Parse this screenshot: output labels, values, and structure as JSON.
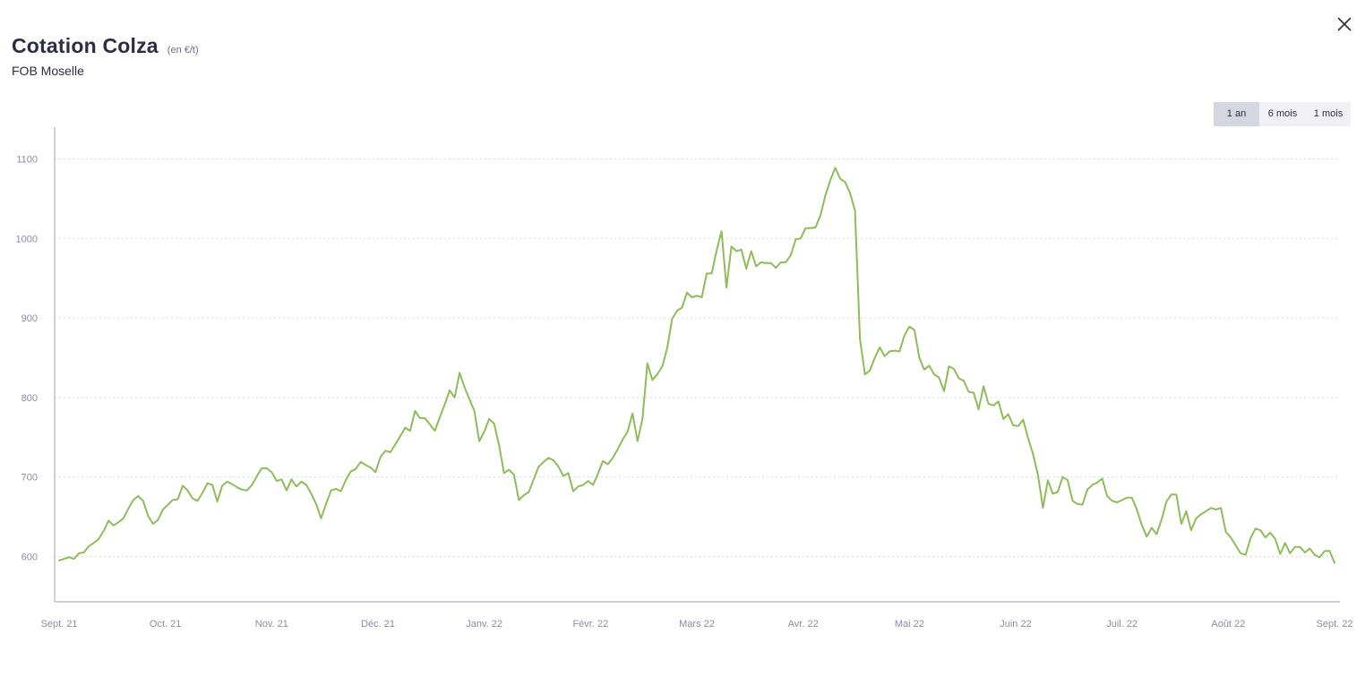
{
  "header": {
    "title": "Cotation Colza",
    "unit": "(en €/t)",
    "subtitle": "FOB Moselle"
  },
  "icons": {
    "close": "close-icon"
  },
  "range_buttons": [
    {
      "label": "1 an",
      "selected": true
    },
    {
      "label": "6 mois",
      "selected": false
    },
    {
      "label": "1 mois",
      "selected": false
    }
  ],
  "colors": {
    "line": "#8fbc5a",
    "grid": "#d5d7e0",
    "axis": "#9ea0b5",
    "selected_button": "#d6d6e0",
    "button_bg": "#f1f1f5"
  },
  "chart_data": {
    "type": "line",
    "title": "Cotation Colza",
    "subtitle": "FOB Moselle",
    "unit": "(en €/t)",
    "x_labels": [
      "Sept. 21",
      "Oct. 21",
      "Nov. 21",
      "Déc. 21",
      "Janv. 22",
      "Févr. 22",
      "Mars 22",
      "Avr. 22",
      "Mai 22",
      "Juin 22",
      "Juil. 22",
      "Août 22",
      "Sept. 22"
    ],
    "yticks": [
      600,
      700,
      800,
      900,
      1000,
      1100
    ],
    "ylim": [
      543,
      1140
    ],
    "grid": true,
    "legend": "none",
    "series": [
      {
        "values": [
          595,
          597,
          599,
          597,
          604,
          605,
          613,
          617,
          622,
          632,
          645,
          639,
          643,
          648,
          660,
          671,
          676,
          670,
          651,
          641,
          646,
          659,
          665,
          671,
          672,
          689,
          683,
          673,
          670,
          680,
          692,
          690,
          669,
          689,
          694,
          691,
          687,
          684,
          683,
          690,
          701,
          711,
          711,
          706,
          695,
          697,
          683,
          697,
          688,
          694,
          690,
          679,
          666,
          648,
          666,
          683,
          685,
          682,
          696,
          707,
          710,
          719,
          715,
          712,
          706,
          725,
          733,
          731,
          741,
          751,
          762,
          758,
          783,
          774,
          774,
          766,
          758,
          775,
          791,
          809,
          800,
          831,
          813,
          798,
          783,
          745,
          757,
          773,
          767,
          740,
          705,
          709,
          703,
          671,
          677,
          681,
          697,
          713,
          719,
          724,
          721,
          713,
          701,
          705,
          682,
          688,
          690,
          695,
          690,
          704,
          720,
          716,
          724,
          735,
          747,
          757,
          780,
          745,
          773,
          843,
          822,
          829,
          839,
          862,
          899,
          909,
          913,
          932,
          926,
          928,
          926,
          956,
          956,
          985,
          1009,
          938,
          990,
          984,
          986,
          962,
          984,
          965,
          970,
          969,
          969,
          963,
          970,
          970,
          979,
          999,
          1000,
          1013,
          1013,
          1014,
          1029,
          1054,
          1073,
          1089,
          1075,
          1071,
          1057,
          1035,
          874,
          829,
          834,
          850,
          863,
          852,
          858,
          859,
          858,
          878,
          889,
          885,
          850,
          835,
          840,
          829,
          825,
          808,
          839,
          836,
          824,
          821,
          807,
          806,
          785,
          814,
          792,
          790,
          795,
          773,
          779,
          765,
          764,
          772,
          749,
          729,
          703,
          661,
          696,
          679,
          681,
          700,
          696,
          670,
          666,
          665,
          684,
          690,
          693,
          698,
          676,
          670,
          668,
          671,
          674,
          674,
          659,
          640,
          625,
          636,
          628,
          646,
          669,
          678,
          678,
          641,
          657,
          633,
          648,
          653,
          657,
          661,
          659,
          661,
          631,
          624,
          614,
          604,
          602,
          623,
          635,
          633,
          624,
          630,
          622,
          603,
          617,
          604,
          612,
          612,
          605,
          610,
          602,
          599,
          607,
          607,
          592
        ]
      }
    ]
  }
}
